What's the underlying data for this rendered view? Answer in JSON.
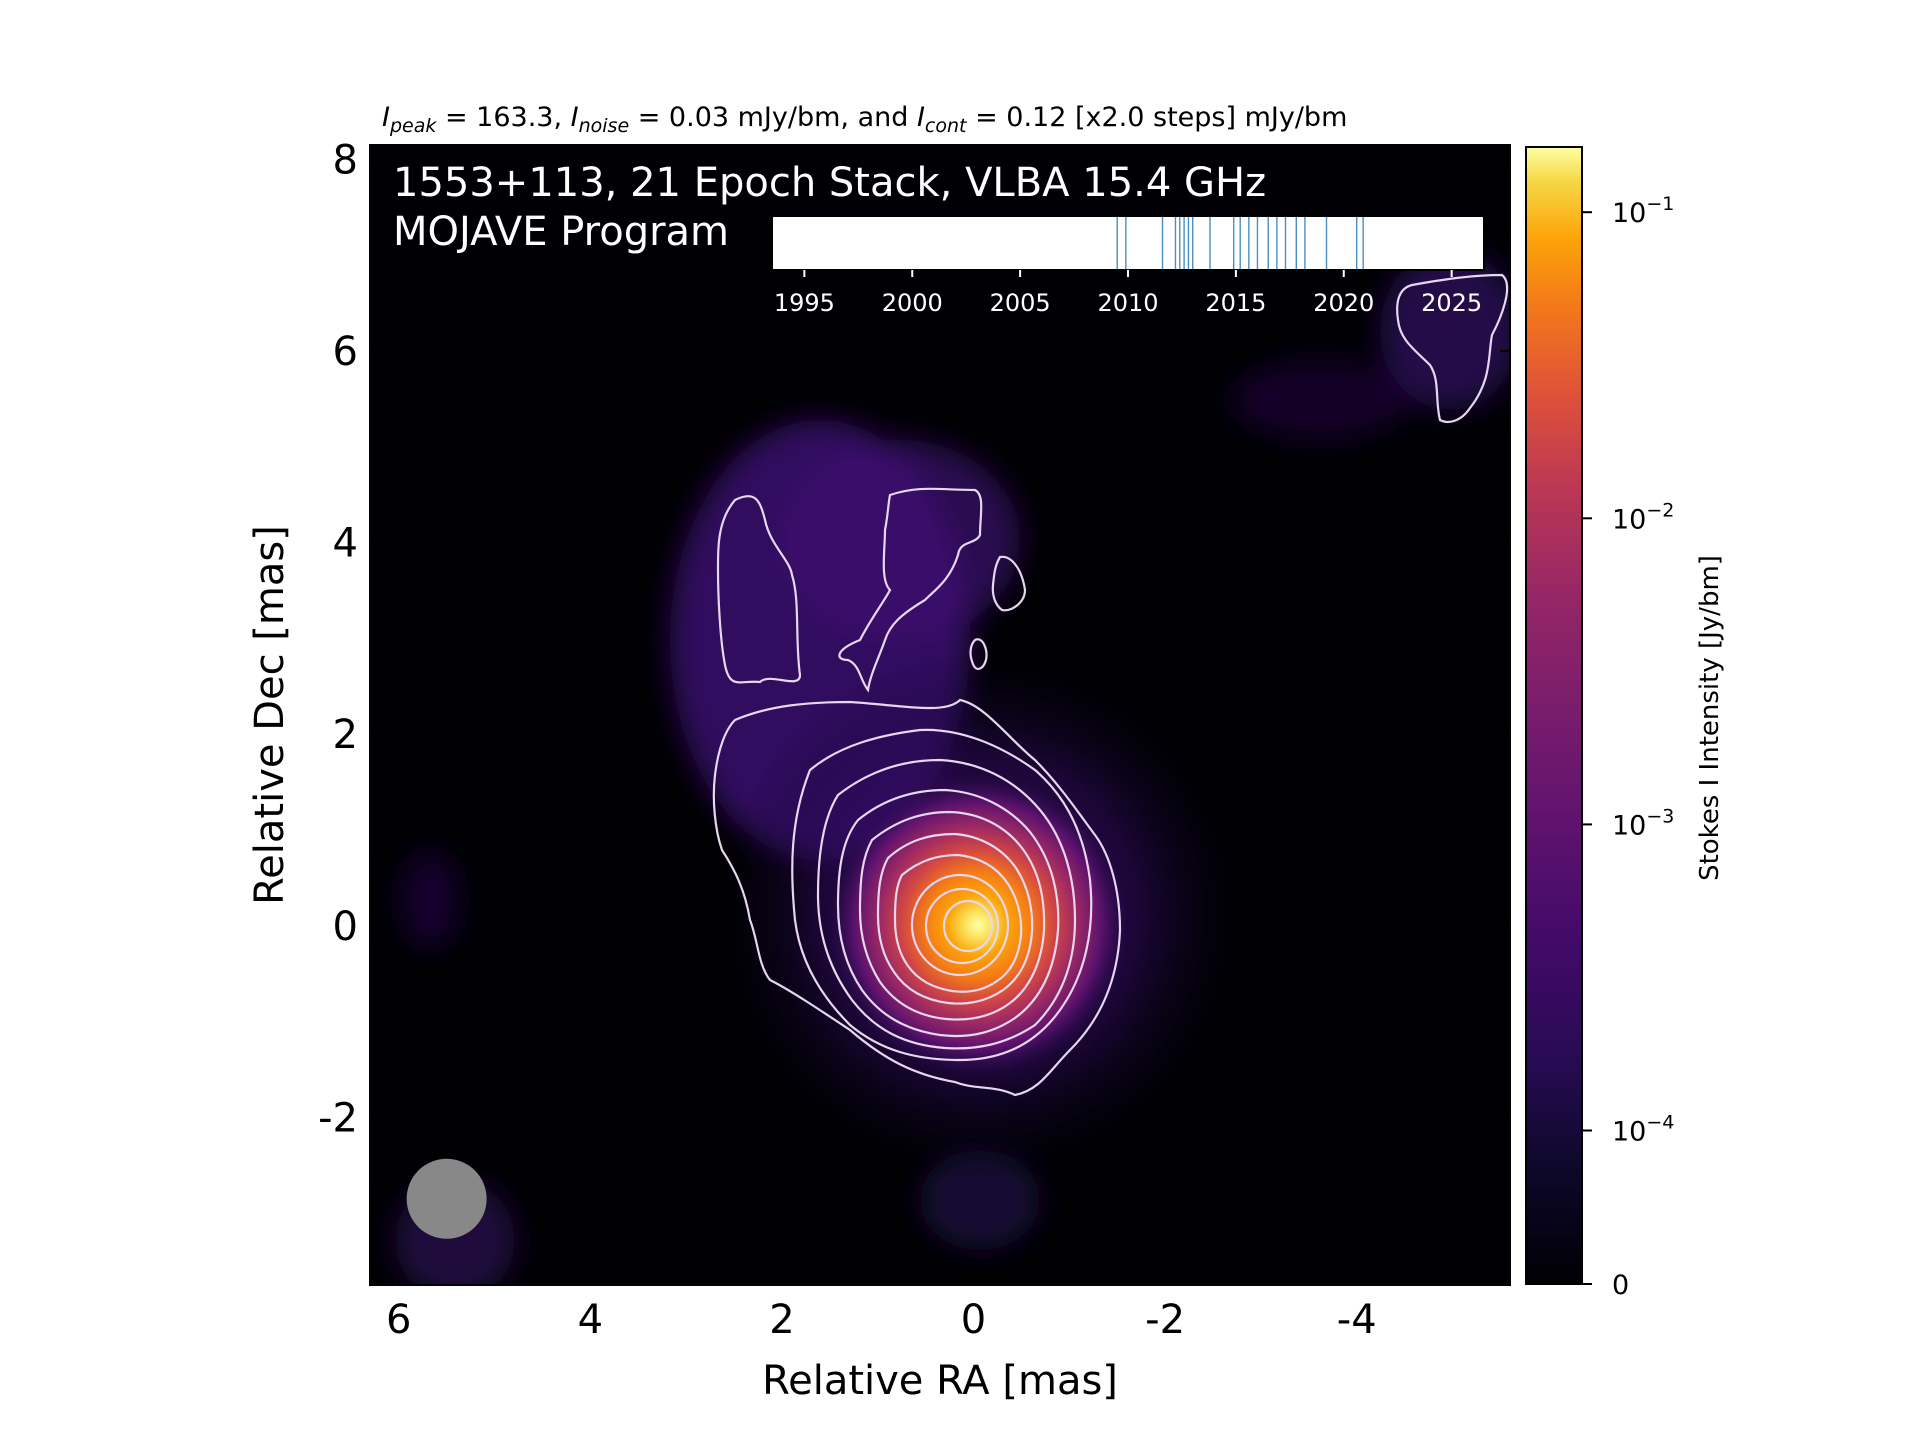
{
  "chart_data": {
    "type": "heatmap",
    "title_parts": {
      "peak_symbol": "I",
      "peak_sub": "peak",
      "peak_text": " = 163.3, ",
      "noise_symbol": "I",
      "noise_sub": "noise",
      "noise_text": " = 0.03 mJy/bm, and ",
      "cont_symbol": "I",
      "cont_sub": "cont",
      "cont_text": " = 0.12 [x2.0 steps] mJy/bm"
    },
    "title": "Ipeak = 163.3, Inoise = 0.03 mJy/bm, and Icont = 0.12 [x2.0 steps] mJy/bm",
    "annotation_line1": "1553+113, 21 Epoch Stack, VLBA 15.4 GHz",
    "annotation_line2": "MOJAVE Program",
    "xlabel": "Relative RA [mas]",
    "ylabel": "Relative Dec [mas]",
    "xlim": [
      6.3,
      -5.6
    ],
    "ylim": [
      -3.75,
      8.15
    ],
    "xticks": [
      6,
      4,
      2,
      0,
      -2,
      -4
    ],
    "xtick_labels": [
      "6",
      "4",
      "2",
      "0",
      "-2",
      "-4"
    ],
    "yticks": [
      -2,
      0,
      2,
      4,
      6,
      8
    ],
    "ytick_labels": [
      "-2",
      "0",
      "2",
      "4",
      "6",
      "8"
    ],
    "colormap": "inferno",
    "colorbar": {
      "label": "Stokes I Intensity [Jy/bm]",
      "scale": "symlog",
      "ticks": [
        0,
        0.0001,
        0.001,
        0.01,
        0.1
      ],
      "tick_labels": [
        {
          "base": "0",
          "exp": ""
        },
        {
          "base": "10",
          "exp": "−4"
        },
        {
          "base": "10",
          "exp": "−3"
        },
        {
          "base": "10",
          "exp": "−2"
        },
        {
          "base": "10",
          "exp": "−1"
        }
      ],
      "max": 0.1633
    },
    "source": {
      "peak_ra": 0.0,
      "peak_dec": 0.0,
      "peak_jy_per_beam": 0.1633
    },
    "contours": {
      "base_mjy_per_beam": 0.12,
      "step_factor": 2.0,
      "color": "#e6d6ee"
    },
    "beam": {
      "ra": 5.5,
      "dec": -2.85,
      "major_mas": 0.85,
      "minor_mas": 0.85,
      "color": "#888888"
    },
    "epoch_timeline": {
      "xlim": [
        1993.5,
        2026.5
      ],
      "ticks": [
        1995,
        2000,
        2005,
        2010,
        2015,
        2020,
        2025
      ],
      "tick_labels": [
        "1995",
        "2000",
        "2005",
        "2010",
        "2015",
        "2020",
        "2025"
      ],
      "epochs": [
        2009.5,
        2009.9,
        2011.6,
        2012.2,
        2012.4,
        2012.6,
        2012.8,
        2013.0,
        2013.8,
        2014.9,
        2015.2,
        2015.6,
        2016.0,
        2016.5,
        2016.9,
        2017.3,
        2017.8,
        2018.2,
        2019.2,
        2020.6,
        2020.9
      ],
      "line_color": "#4a8fc2"
    }
  }
}
